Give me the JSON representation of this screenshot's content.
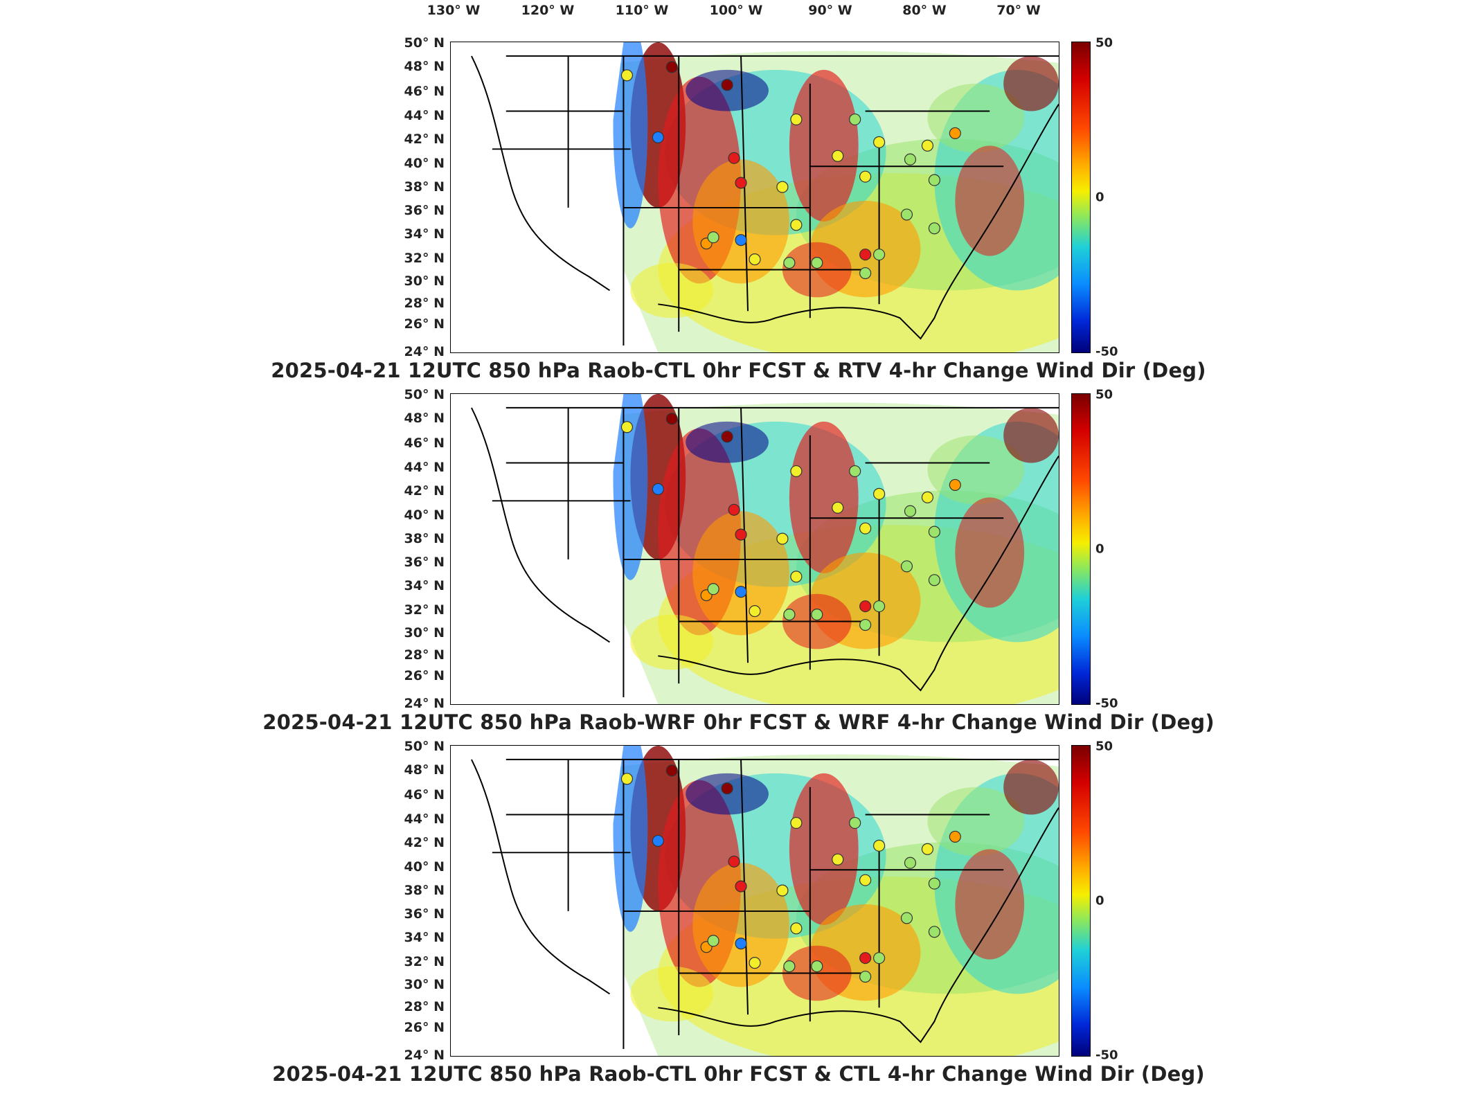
{
  "lon_labels": [
    "130° W",
    "120° W",
    "110° W",
    "100° W",
    "90° W",
    "80° W",
    "70° W"
  ],
  "lat_labels": [
    "50° N",
    "48° N",
    "46° N",
    "44° N",
    "42° N",
    "40° N",
    "38° N",
    "36° N",
    "34° N",
    "32° N",
    "30° N",
    "28° N",
    "26° N",
    "24° N"
  ],
  "colorbar": {
    "max": "50",
    "mid": "0",
    "min": "-50"
  },
  "panels": [
    {
      "caption": "2025-04-21 12UTC 850 hPa Raob-CTL 0hr FCST & RTV 4-hr Change Wind Dir (Deg)"
    },
    {
      "caption": "2025-04-21 12UTC 850 hPa Raob-WRF 0hr FCST & WRF 4-hr Change Wind Dir (Deg)"
    },
    {
      "caption": "2025-04-21 12UTC 850 hPa Raob-CTL 0hr FCST & CTL 4-hr Change Wind Dir (Deg)"
    }
  ],
  "colors": {
    "deep_red": "#8b0000",
    "red": "#e41a1c",
    "orange": "#ff9900",
    "yellow": "#f3ee2a",
    "green": "#9be36b",
    "cyan": "#2fd6d6",
    "blue": "#1e7fff",
    "deep_blue": "#00008b"
  }
}
